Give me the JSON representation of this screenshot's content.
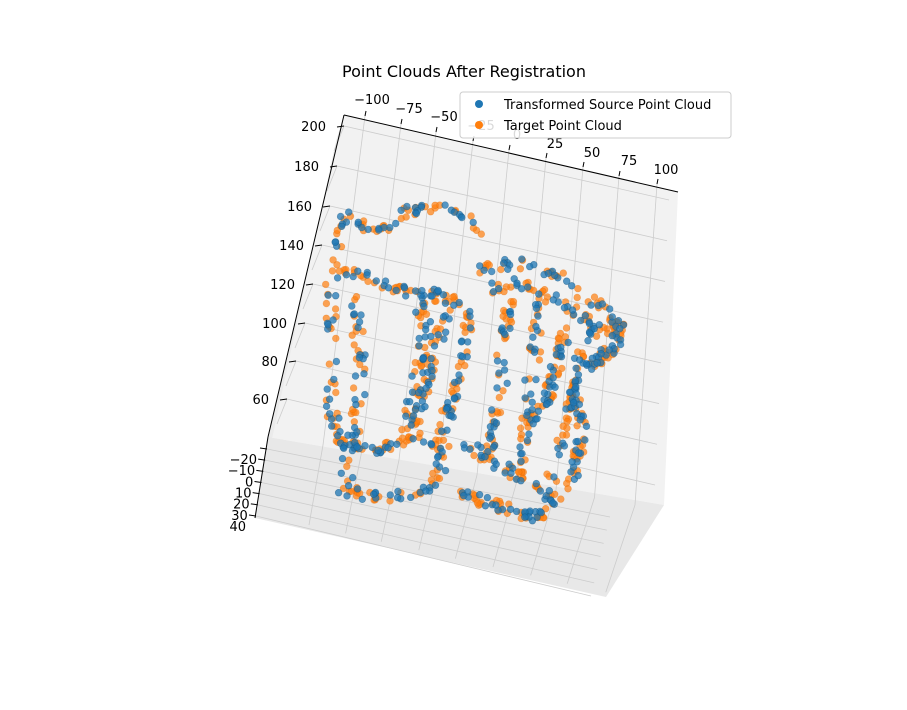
{
  "chart_data": {
    "type": "scatter",
    "projection": "3d",
    "title": "Point Clouds After Registration",
    "xlabel": "",
    "ylabel": "",
    "zlabel": "",
    "x_ticks": [
      "−100",
      "−75",
      "−50",
      "−25",
      "0",
      "25",
      "50",
      "75",
      "100"
    ],
    "y_ticks": [
      "−20",
      "−10",
      "0",
      "10",
      "20",
      "30",
      "40"
    ],
    "z_ticks": [
      "60",
      "80",
      "100",
      "120",
      "140",
      "160",
      "180",
      "200"
    ],
    "xlim": [
      -115,
      110
    ],
    "ylim": [
      -25,
      42
    ],
    "zlim": [
      45,
      205
    ],
    "grid": true,
    "legend_position": "top-right",
    "series": [
      {
        "name": "Transformed Source Point Cloud",
        "color": "#1f77b4",
        "description": "outline of a two-digit shape traced by points",
        "point_count": 480
      },
      {
        "name": "Target Point Cloud",
        "color": "#ff7f0e",
        "description": "outline of a two-digit shape traced by points, slightly offset",
        "point_count": 560
      }
    ]
  }
}
